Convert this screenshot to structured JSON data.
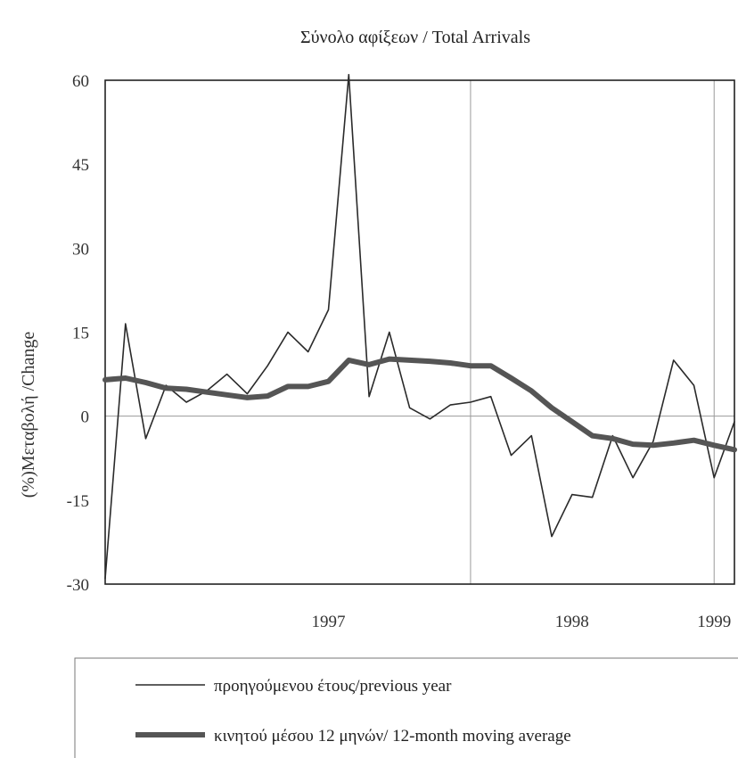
{
  "chart_data": {
    "type": "line",
    "title": "Σύνολο αφίξεων / Total Arrivals",
    "ylabel": "(%)Μεταβολή /Change",
    "xlabel": "",
    "ylim": [
      -30,
      60
    ],
    "yticks": [
      60,
      45,
      30,
      15,
      0,
      -15,
      -30
    ],
    "x_tick_labels": [
      "1997",
      "1998",
      "1999"
    ],
    "grid": "vertical lines at start of 1998 and 1999, horizontal line at 0",
    "legend_position": "bottom",
    "x_start": "1996-07",
    "x_end": "1999-02",
    "series": [
      {
        "name": "προηγούμενου έτους/previous year",
        "style": "thin",
        "color": "#2a2a2a",
        "x": [
          "1996-07",
          "1996-08",
          "1996-09",
          "1996-10",
          "1996-11",
          "1996-12",
          "1997-01",
          "1997-02",
          "1997-03",
          "1997-04",
          "1997-05",
          "1997-06",
          "1997-07",
          "1997-08",
          "1997-09",
          "1997-10",
          "1997-11",
          "1997-12",
          "1998-01",
          "1998-02",
          "1998-03",
          "1998-04",
          "1998-05",
          "1998-06",
          "1998-07",
          "1998-08",
          "1998-09",
          "1998-10",
          "1998-11",
          "1998-12",
          "1999-01",
          "1999-02"
        ],
        "values": [
          -29,
          16.5,
          -4,
          5.5,
          2.5,
          4.5,
          7.5,
          4,
          9,
          15,
          11.5,
          19,
          61,
          3.5,
          15,
          1.5,
          -0.5,
          2,
          2.5,
          3.5,
          -7,
          -3.5,
          -21.5,
          -14,
          -14.5,
          -3.5,
          -11,
          -4.5,
          10,
          5.5,
          -11,
          -1
        ]
      },
      {
        "name": "κινητού μέσου 12 μηνών/ 12-month moving average",
        "style": "thick",
        "color": "#555555",
        "x": [
          "1996-07",
          "1996-08",
          "1996-09",
          "1996-10",
          "1996-11",
          "1996-12",
          "1997-01",
          "1997-02",
          "1997-03",
          "1997-04",
          "1997-05",
          "1997-06",
          "1997-07",
          "1997-08",
          "1997-09",
          "1997-10",
          "1997-11",
          "1997-12",
          "1998-01",
          "1998-02",
          "1998-03",
          "1998-04",
          "1998-05",
          "1998-06",
          "1998-07",
          "1998-08",
          "1998-09",
          "1998-10",
          "1998-11",
          "1998-12",
          "1999-01",
          "1999-02"
        ],
        "values": [
          6.5,
          6.8,
          6,
          5,
          4.8,
          4.3,
          3.8,
          3.3,
          3.6,
          5.3,
          5.3,
          6.2,
          10,
          9.2,
          10.2,
          10,
          9.8,
          9.5,
          9,
          9,
          6.8,
          4.5,
          1.5,
          -1,
          -3.5,
          -4,
          -5,
          -5.2,
          -4.8,
          -4.3,
          -5.2,
          -6
        ]
      }
    ]
  }
}
